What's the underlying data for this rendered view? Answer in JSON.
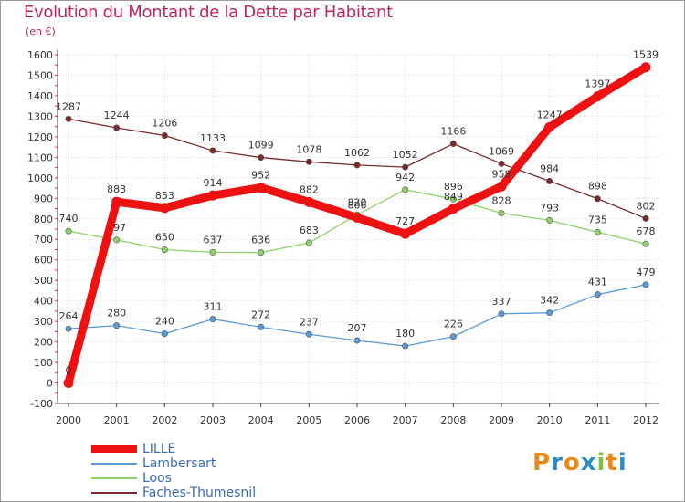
{
  "title": "Evolution du Montant de la Dette par Habitant",
  "subtitle": "(en €)",
  "brand": {
    "letters": [
      "P",
      "r",
      "o",
      "x",
      "i",
      "t",
      "i"
    ],
    "colors": [
      "#e8891c",
      "#2e8bc9",
      "#e8891c",
      "#2e8bc9",
      "#7cc242",
      "#e8891c",
      "#2e8bc9"
    ]
  },
  "chart_data": {
    "type": "line",
    "title": "Evolution du Montant de la Dette par Habitant",
    "subtitle": "(en €)",
    "xlabel": "",
    "ylabel": "",
    "ylim": [
      -100,
      1600
    ],
    "yticks": [
      -100,
      0,
      100,
      200,
      300,
      400,
      500,
      600,
      700,
      800,
      900,
      1000,
      1100,
      1200,
      1300,
      1400,
      1500,
      1600
    ],
    "x": [
      "2000",
      "2001",
      "2002",
      "2003",
      "2004",
      "2005",
      "2006",
      "2007",
      "2008",
      "2009",
      "2010",
      "2011",
      "2012"
    ],
    "grid": true,
    "legend_position": "bottom-left",
    "series": [
      {
        "name": "Faches-Thumesnil",
        "color": "#7a2a2a",
        "width": 1.3,
        "values": [
          1287,
          1244,
          1206,
          1133,
          1099,
          1078,
          1062,
          1052,
          1166,
          1069,
          984,
          898,
          802
        ]
      },
      {
        "name": "Loos",
        "color": "#8fd16a",
        "marker": "#8fd16a",
        "width": 1.3,
        "values": [
          740,
          697,
          650,
          637,
          636,
          683,
          820,
          942,
          896,
          828,
          793,
          735,
          678
        ]
      },
      {
        "name": "Lambersart",
        "color": "#5b9bd5",
        "width": 1.3,
        "values": [
          264,
          280,
          240,
          311,
          272,
          237,
          207,
          180,
          226,
          337,
          342,
          431,
          479
        ]
      },
      {
        "name": "LILLE",
        "color": "#ee1111",
        "width": 9,
        "values": [
          0,
          883,
          853,
          914,
          952,
          882,
          806,
          727,
          849,
          958,
          1247,
          1397,
          1539
        ]
      }
    ],
    "legend_order": [
      "LILLE",
      "Lambersart",
      "Loos",
      "Faches-Thumesnil"
    ]
  }
}
